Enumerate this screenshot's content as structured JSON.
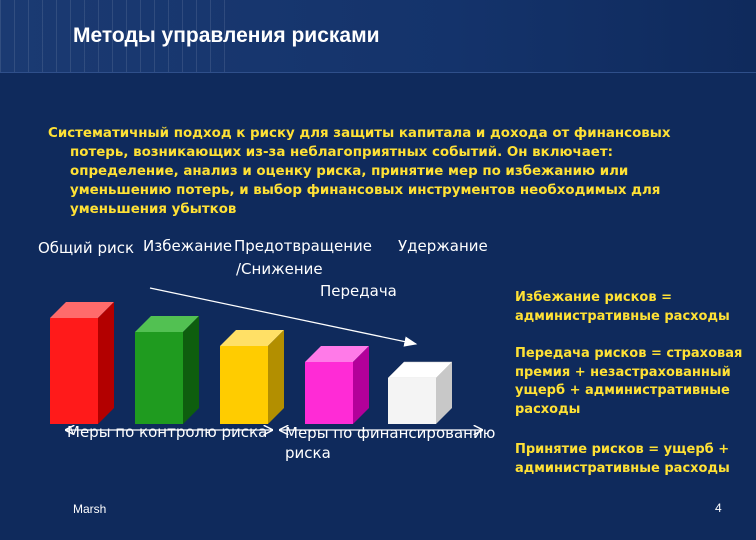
{
  "title": "Методы управления рисками",
  "intro": {
    "line1": "Систематичный подход к риску для защиты капитала и дохода от финансовых",
    "rest": "потерь, возникающих из-за неблагоприятных событий. Он включает: определение, анализ и оценку риска, принятие мер по избежанию или уменьшению потерь, и выбор финансовых инструментов необходимых для уменьшения убытков"
  },
  "labels": {
    "total_risk": "Общий риск",
    "avoidance": "Избежание",
    "prevention": "Предотвращение",
    "reduction": "/Снижение",
    "retention": "Удержание",
    "transfer": "Передача",
    "control_measures": "Меры по контролю риска",
    "financing_measures": "Меры по финансированию риска"
  },
  "notes": {
    "avoidance": "Избежание рисков = административные  расходы",
    "transfer": "Передача рисков = страховая премия + незастрахованный ущерб + административные расходы",
    "retention": "Принятие рисков = ущерб + административные расходы"
  },
  "footer": {
    "source": "Marsh",
    "page": "4"
  },
  "colors": {
    "background": "#0f2a5c",
    "accent_text": "#ffe135",
    "bar_red": "#ff1a1a",
    "bar_green": "#1f9b1f",
    "bar_yellow": "#ffcc00",
    "bar_magenta": "#ff2bd6",
    "bar_white": "#ffffff"
  }
}
